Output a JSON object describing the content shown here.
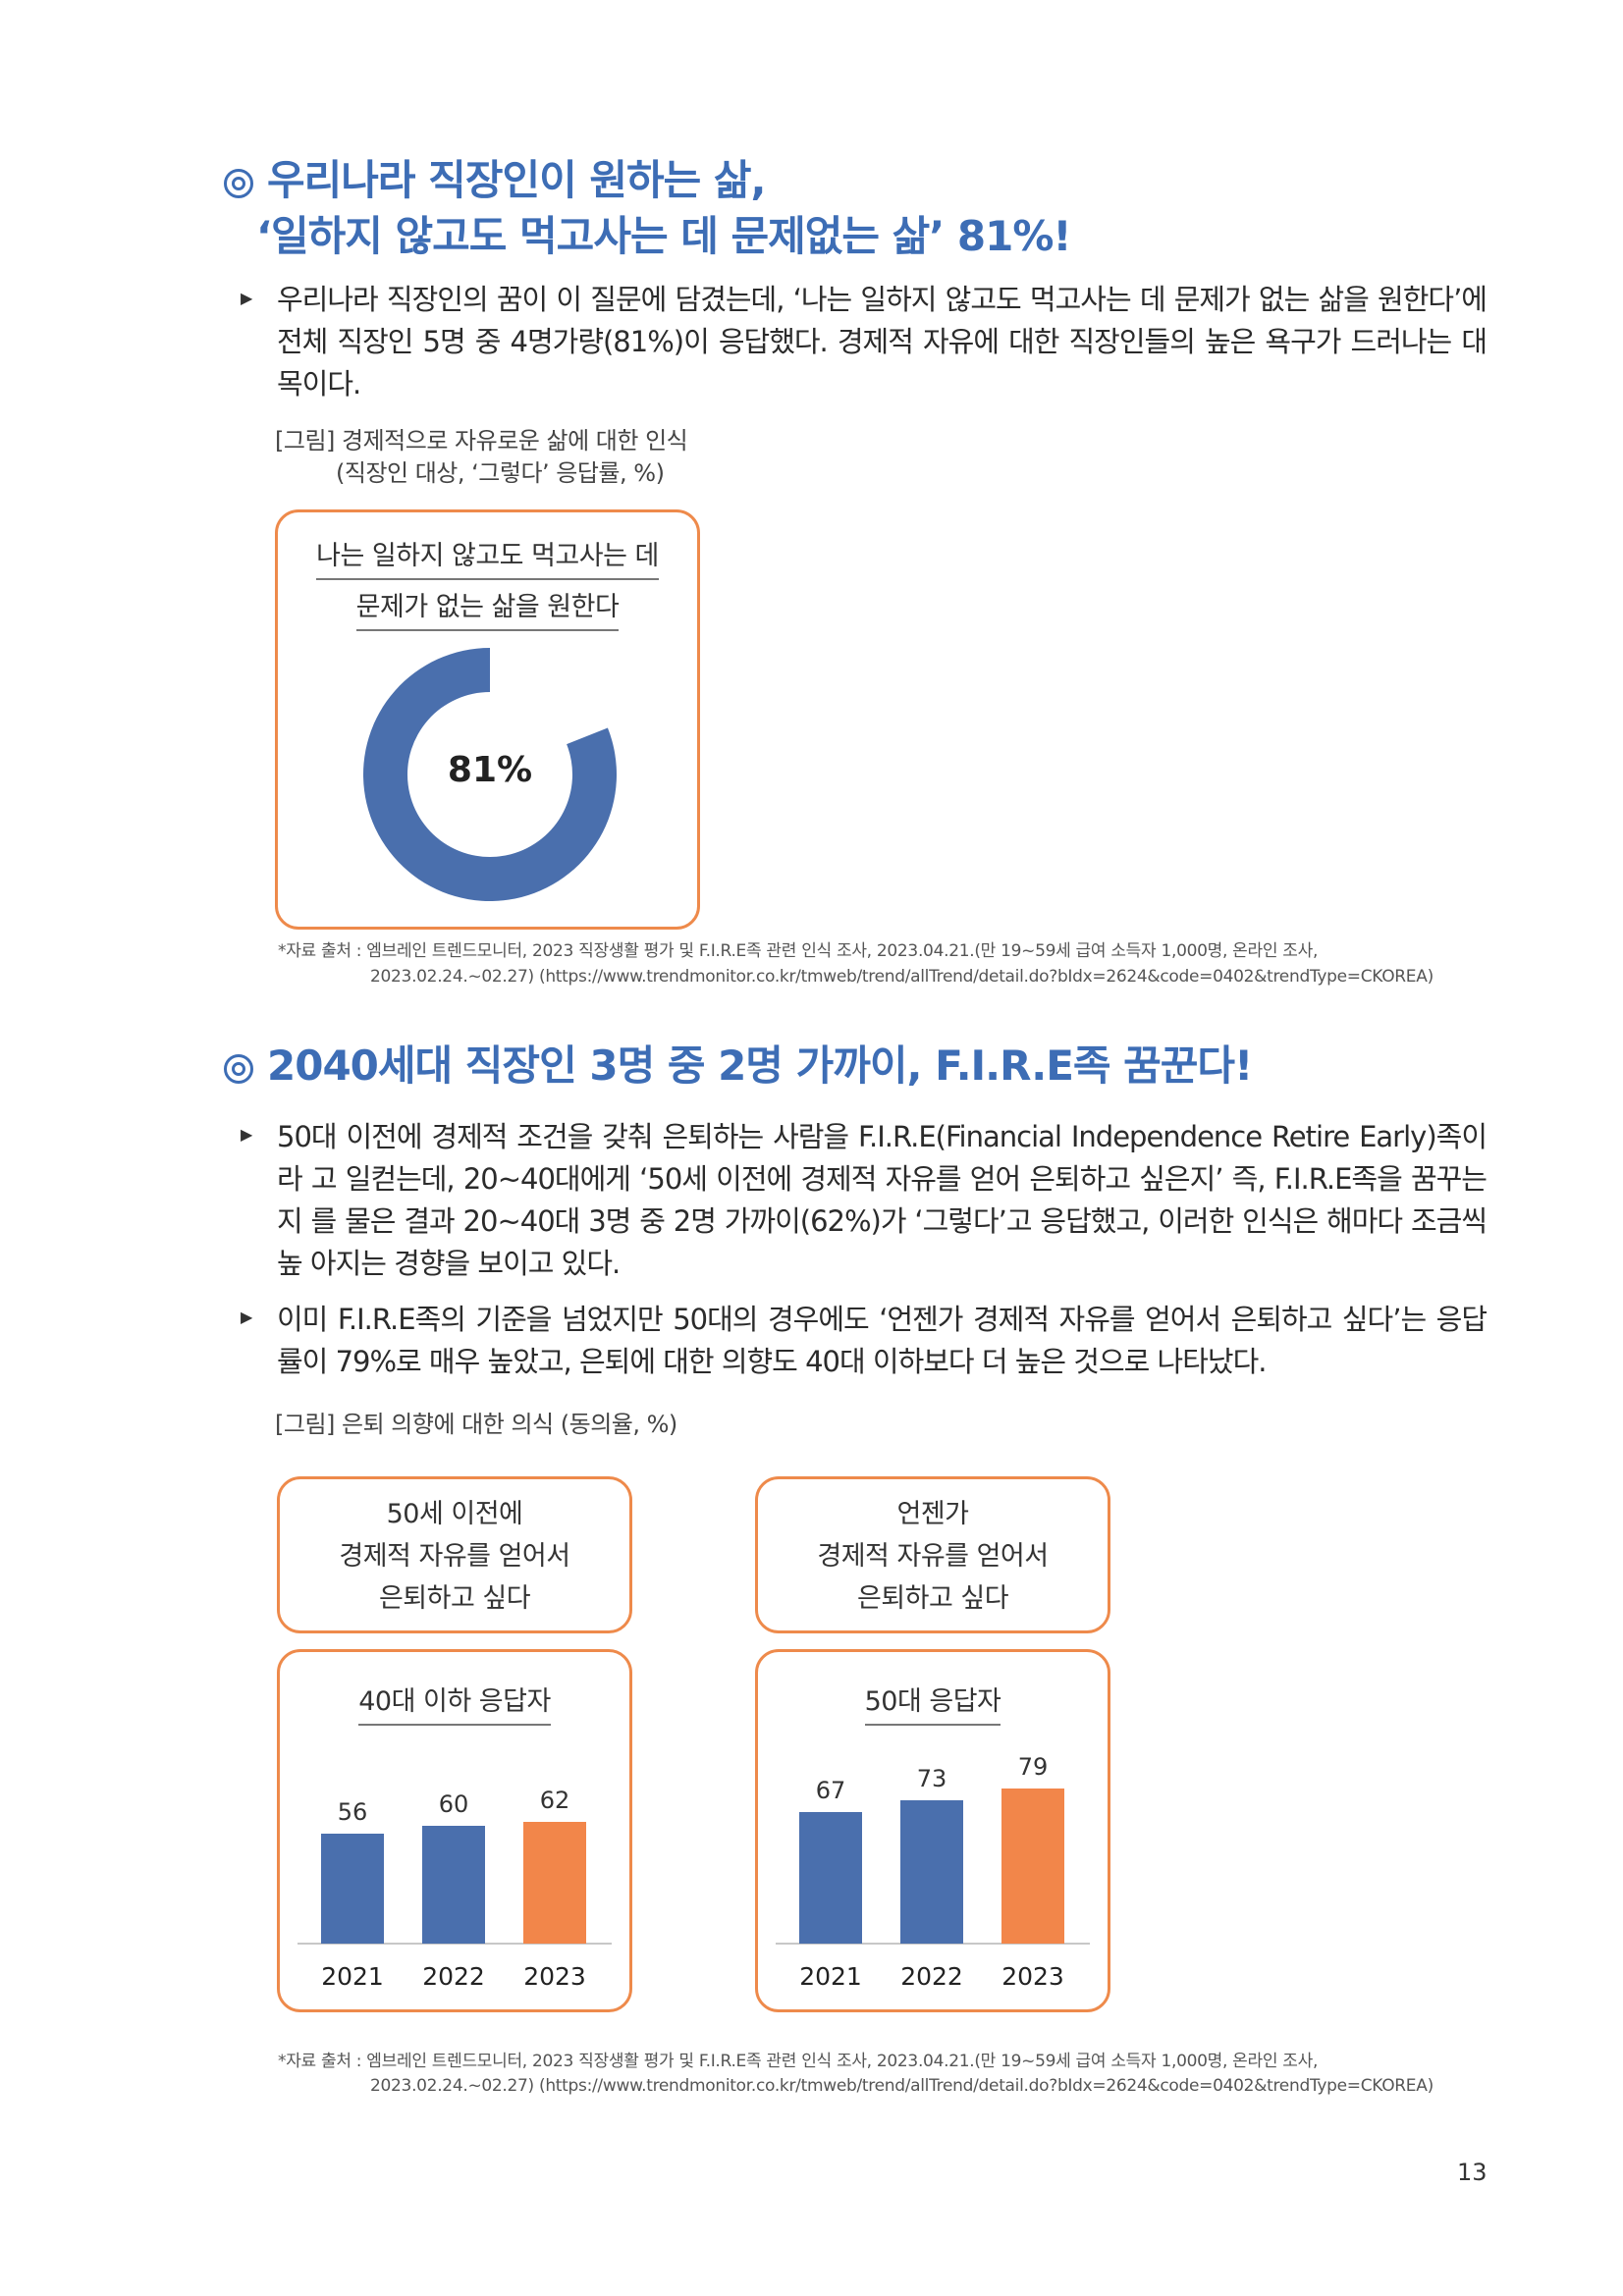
{
  "section1": {
    "heading_line1": "우리나라 직장인이 원하는 삶,",
    "heading_line2": "‘일하지 않고도 먹고사는 데 문제없는 삶’ 81%!",
    "paragraph": "우리나라 직장인의 꿈이 이 질문에 담겼는데, ‘나는 일하지 않고도 먹고사는 데 문제가 없는 삶을 원한다’에 전체 직장인 5명 중 4명가량(81%)이 응답했다. 경제적 자유에 대한 직장인들의 높은 욕구가 드러나는 대목이다.",
    "figure_caption_line1": "[그림] 경제적으로 자유로운 삶에 대한 인식",
    "figure_caption_line2": "(직장인 대상, ‘그렇다’ 응답률, %)",
    "box_label_line1": "나는 일하지 않고도 먹고사는 데",
    "box_label_line2": "문제가 없는 삶을 원한다",
    "center_label": "81%",
    "source_line1": "*자료 출처 : 엠브레인 트렌드모니터, 2023 직장생활 평가 및 F.I.R.E족 관련 인식 조사, 2023.04.21.(만 19~59세 급여 소득자 1,000명, 온라인 조사,",
    "source_line2": "2023.02.24.~02.27) (https://www.trendmonitor.co.kr/tmweb/trend/allTrend/detail.do?bIdx=2624&code=0402&trendType=CKOREA)"
  },
  "section2": {
    "heading": "2040세대 직장인 3명 중 2명 가까이, F.I.R.E족 꿈꾼다!",
    "paragraph1": "50대 이전에 경제적 조건을 갖춰 은퇴하는 사람을 F.I.R.E(Financial Independence Retire Early)족이라 고 일컫는데, 20~40대에게 ‘50세 이전에 경제적 자유를 얻어 은퇴하고 싶은지’ 즉, F.I.R.E족을 꿈꾸는지 를 물은 결과 20~40대 3명 중 2명 가까이(62%)가 ‘그렇다’고 응답했고, 이러한 인식은 해마다 조금씩 높 아지는 경향을 보이고 있다.",
    "paragraph2": "이미 F.I.R.E족의 기준을 넘었지만 50대의 경우에도 ‘언젠가 경제적 자유를 얻어서 은퇴하고 싶다’는 응답 률이 79%로 매우 높았고, 은퇴에 대한 의향도 40대 이하보다 더 높은 것으로 나타났다.",
    "figure_caption": "[그림] 은퇴 의향에 대한 의식 (동의율, %)",
    "left_top_box": [
      "50세 이전에",
      "경제적 자유를 얻어서",
      "은퇴하고 싶다"
    ],
    "right_top_box": [
      "언젠가",
      "경제적 자유를 얻어서",
      "은퇴하고 싶다"
    ],
    "source_line1": "*자료 출처 : 엠브레인 트렌드모니터, 2023 직장생활 평가 및 F.I.R.E족 관련 인식 조사, 2023.04.21.(만 19~59세 급여 소득자 1,000명, 온라인 조사,",
    "source_line2": "2023.02.24.~02.27) (https://www.trendmonitor.co.kr/tmweb/trend/allTrend/detail.do?bIdx=2624&code=0402&trendType=CKOREA)"
  },
  "page_number": "13",
  "colors": {
    "blue": "#4a6fad",
    "orange": "#f2864a",
    "heading": "#3d6db5",
    "border": "#ee8a4b"
  },
  "chart_data": [
    {
      "type": "pie",
      "labels": [
        "그렇다"
      ],
      "values": [
        81
      ],
      "title": "나는 일하지 않고도 먹고사는 데 문제가 없는 삶을 원한다"
    },
    {
      "type": "bar",
      "title": "40대 이하 응답자",
      "categories": [
        "2021",
        "2022",
        "2023"
      ],
      "values": [
        56,
        60,
        62
      ],
      "ylim": [
        0,
        100
      ]
    },
    {
      "type": "bar",
      "title": "50대 응답자",
      "categories": [
        "2021",
        "2022",
        "2023"
      ],
      "values": [
        67,
        73,
        79
      ],
      "ylim": [
        0,
        100
      ]
    }
  ]
}
